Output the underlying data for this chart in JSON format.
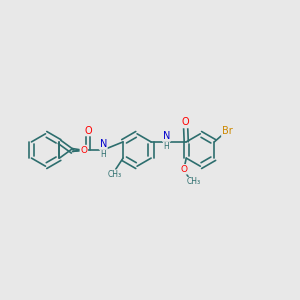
{
  "background_color": "#e8e8e8",
  "bond_color": "#2d6e6e",
  "atom_colors": {
    "O": "#ff0000",
    "N": "#0000cc",
    "Br": "#cc8800",
    "C": "#2d6e6e",
    "H": "#2d6e6e"
  },
  "figsize": [
    3.0,
    3.0
  ],
  "dpi": 100
}
